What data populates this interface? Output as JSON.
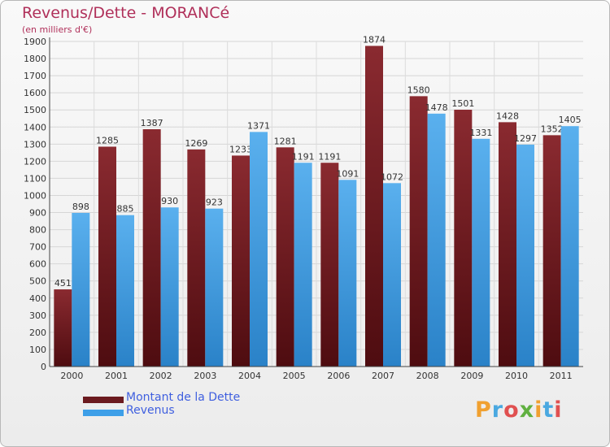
{
  "header": {
    "title": "Revenus/Dette - MORANCé",
    "subtitle": "(en milliers d'€)"
  },
  "legend": {
    "items": [
      {
        "label": "Montant de la Dette",
        "color": "#6b1a1f"
      },
      {
        "label": "Revenus",
        "color": "#3d9fe8"
      }
    ]
  },
  "logo": {
    "text": "Proxiti",
    "colors": [
      "#f0a030",
      "#4aa8e0",
      "#e05050",
      "#60b040",
      "#f0a030",
      "#4aa8e0",
      "#e05050"
    ]
  },
  "chart_data": {
    "type": "bar",
    "title": "Revenus/Dette - MORANCé",
    "subtitle": "(en milliers d'€)",
    "categories": [
      "2000",
      "2001",
      "2002",
      "2003",
      "2004",
      "2005",
      "2006",
      "2007",
      "2008",
      "2009",
      "2010",
      "2011"
    ],
    "series": [
      {
        "name": "Montant de la Dette",
        "color": "#7a1f24",
        "values": [
          451,
          1285,
          1387,
          1269,
          1233,
          1281,
          1191,
          1874,
          1580,
          1501,
          1428,
          1352
        ]
      },
      {
        "name": "Revenus",
        "color": "#3d9fe8",
        "values": [
          898,
          885,
          930,
          923,
          1371,
          1191,
          1091,
          1072,
          1478,
          1331,
          1297,
          1405
        ]
      }
    ],
    "ylim": [
      0,
      1900
    ],
    "yticks": [
      0,
      100,
      200,
      300,
      400,
      500,
      600,
      700,
      800,
      900,
      1000,
      1100,
      1200,
      1300,
      1400,
      1500,
      1600,
      1700,
      1800,
      1900
    ],
    "grid": true,
    "legend_position": "bottom-left"
  }
}
